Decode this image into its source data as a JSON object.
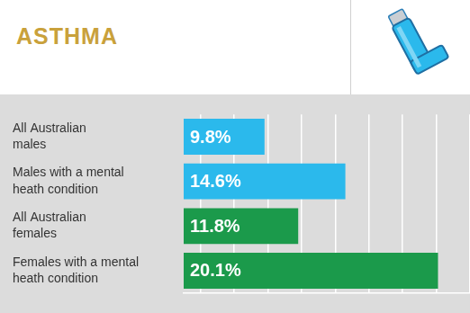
{
  "chart_data": {
    "type": "bar",
    "title": "ASTHMA",
    "orientation": "horizontal",
    "categories": [
      "All Australian males",
      "Males with a mental heath condition",
      "All Australian females",
      "Females with a mental heath condition"
    ],
    "values": [
      9.8,
      14.6,
      11.8,
      20.1
    ],
    "value_labels": [
      "9.8%",
      "14.6%",
      "11.8%",
      "20.1%"
    ],
    "colors": [
      "#2bb9ec",
      "#2bb9ec",
      "#1b9a4b",
      "#1b9a4b"
    ],
    "xlim": [
      5,
      22
    ],
    "xticks": [
      6,
      8,
      10,
      12,
      14,
      16,
      18,
      20,
      22
    ],
    "grid": true,
    "data_labels": true,
    "tick_labels": "y"
  }
}
